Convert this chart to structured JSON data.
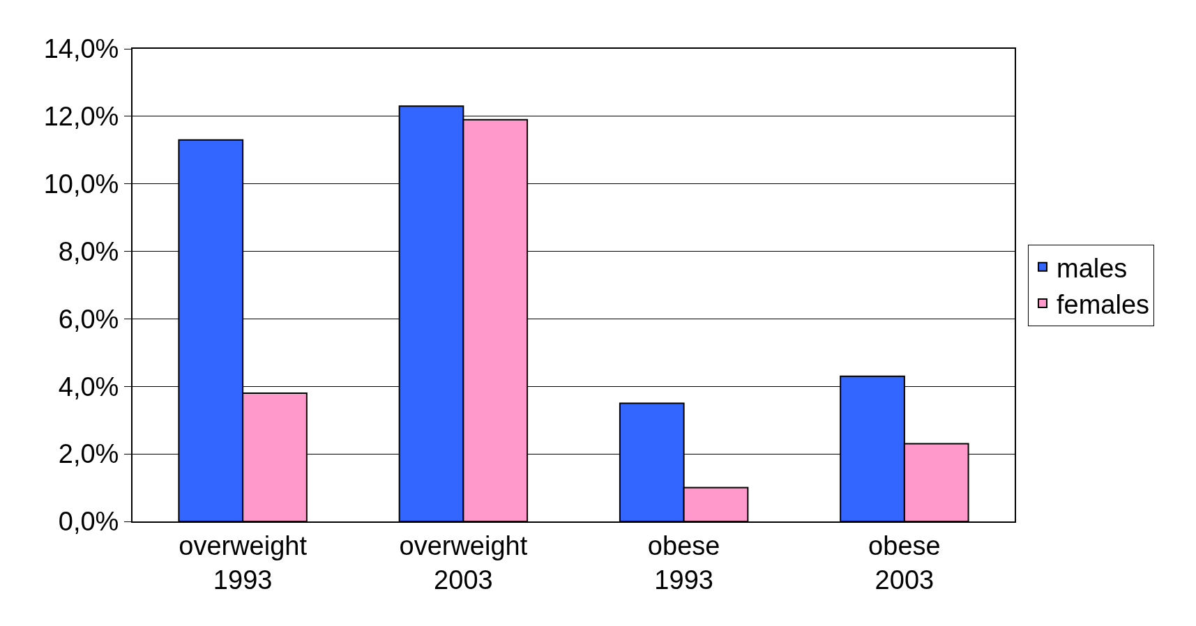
{
  "chart_data": {
    "type": "bar",
    "categories": [
      "overweight\n1993",
      "overweight\n2003",
      "obese\n1993",
      "obese\n2003"
    ],
    "series": [
      {
        "name": "males",
        "color": "#3366ff",
        "values": [
          11.3,
          12.3,
          3.5,
          4.3
        ]
      },
      {
        "name": "females",
        "color": "#ff99cc",
        "values": [
          3.8,
          11.9,
          1.0,
          2.3
        ]
      }
    ],
    "ylim": [
      0,
      14
    ],
    "yticks": [
      {
        "value": 0,
        "label": "0,0%"
      },
      {
        "value": 2,
        "label": "2,0%"
      },
      {
        "value": 4,
        "label": "4,0%"
      },
      {
        "value": 6,
        "label": "6,0%"
      },
      {
        "value": 8,
        "label": "8,0%"
      },
      {
        "value": 10,
        "label": "10,0%"
      },
      {
        "value": 12,
        "label": "12,0%"
      },
      {
        "value": 14,
        "label": "14,0%"
      }
    ],
    "grid": "y",
    "legend": "right"
  }
}
